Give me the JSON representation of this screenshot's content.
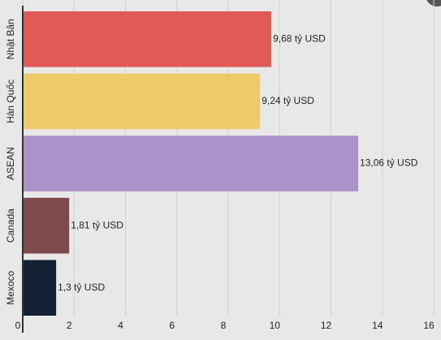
{
  "chart_data": {
    "type": "hbar",
    "categories": [
      "Nhật Bản",
      "Hàn Quốc",
      "ASEAN",
      "Canada",
      "Mexoco"
    ],
    "values": [
      9.68,
      9.24,
      13.06,
      1.81,
      1.3
    ],
    "value_labels": [
      "9,68 tỷ USD",
      "9,24 tỷ USD",
      "13,06 tỷ USD",
      "1,81 tỷ USD",
      "1,3 tỷ USD"
    ],
    "colors": [
      "#e05a57",
      "#f0ca6a",
      "#ab92c9",
      "#7f4a4a",
      "#131f33"
    ],
    "xlim": [
      0,
      16
    ],
    "xticks": [
      0,
      2,
      4,
      6,
      8,
      10,
      12,
      14,
      16
    ],
    "grid": true
  }
}
